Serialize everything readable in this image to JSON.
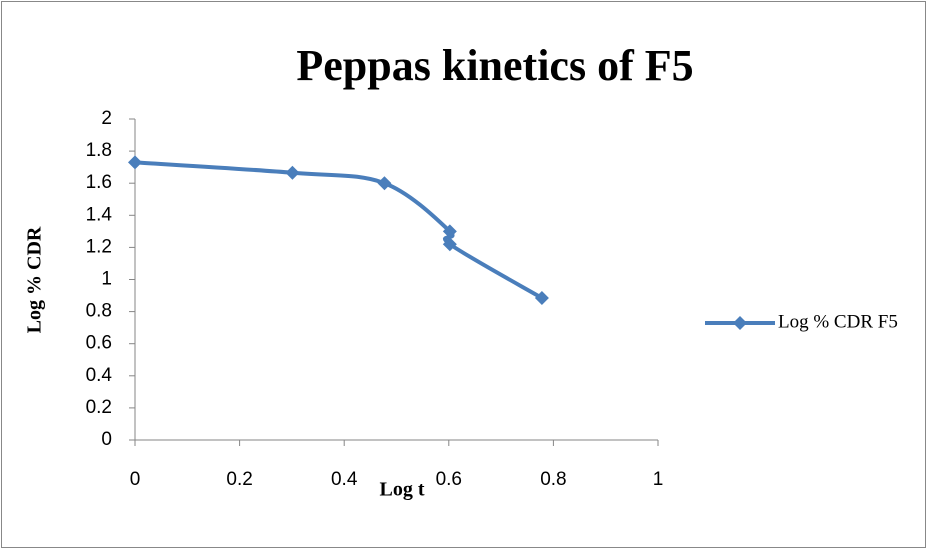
{
  "chart_data": {
    "type": "scatter_smooth",
    "title": "Peppas kinetics of F5",
    "x_label": "Log t",
    "y_label": "Log % CDR",
    "series": [
      {
        "name": "Log % CDR F5",
        "color": "#4a7ebb",
        "x": [
          0,
          0.301,
          0.477,
          0.602,
          0.602,
          0.778
        ],
        "values": [
          1.73,
          1.665,
          1.6,
          1.3,
          1.22,
          0.885
        ]
      }
    ],
    "xlim": [
      0,
      1
    ],
    "xticks": [
      0,
      0.2,
      0.4,
      0.6,
      0.8,
      1
    ],
    "ylim": [
      0,
      2
    ],
    "yticks": [
      0,
      0.2,
      0.4,
      0.6,
      0.8,
      1,
      1.2,
      1.4,
      1.6,
      1.8,
      2
    ],
    "grid": false,
    "legend": "right"
  }
}
